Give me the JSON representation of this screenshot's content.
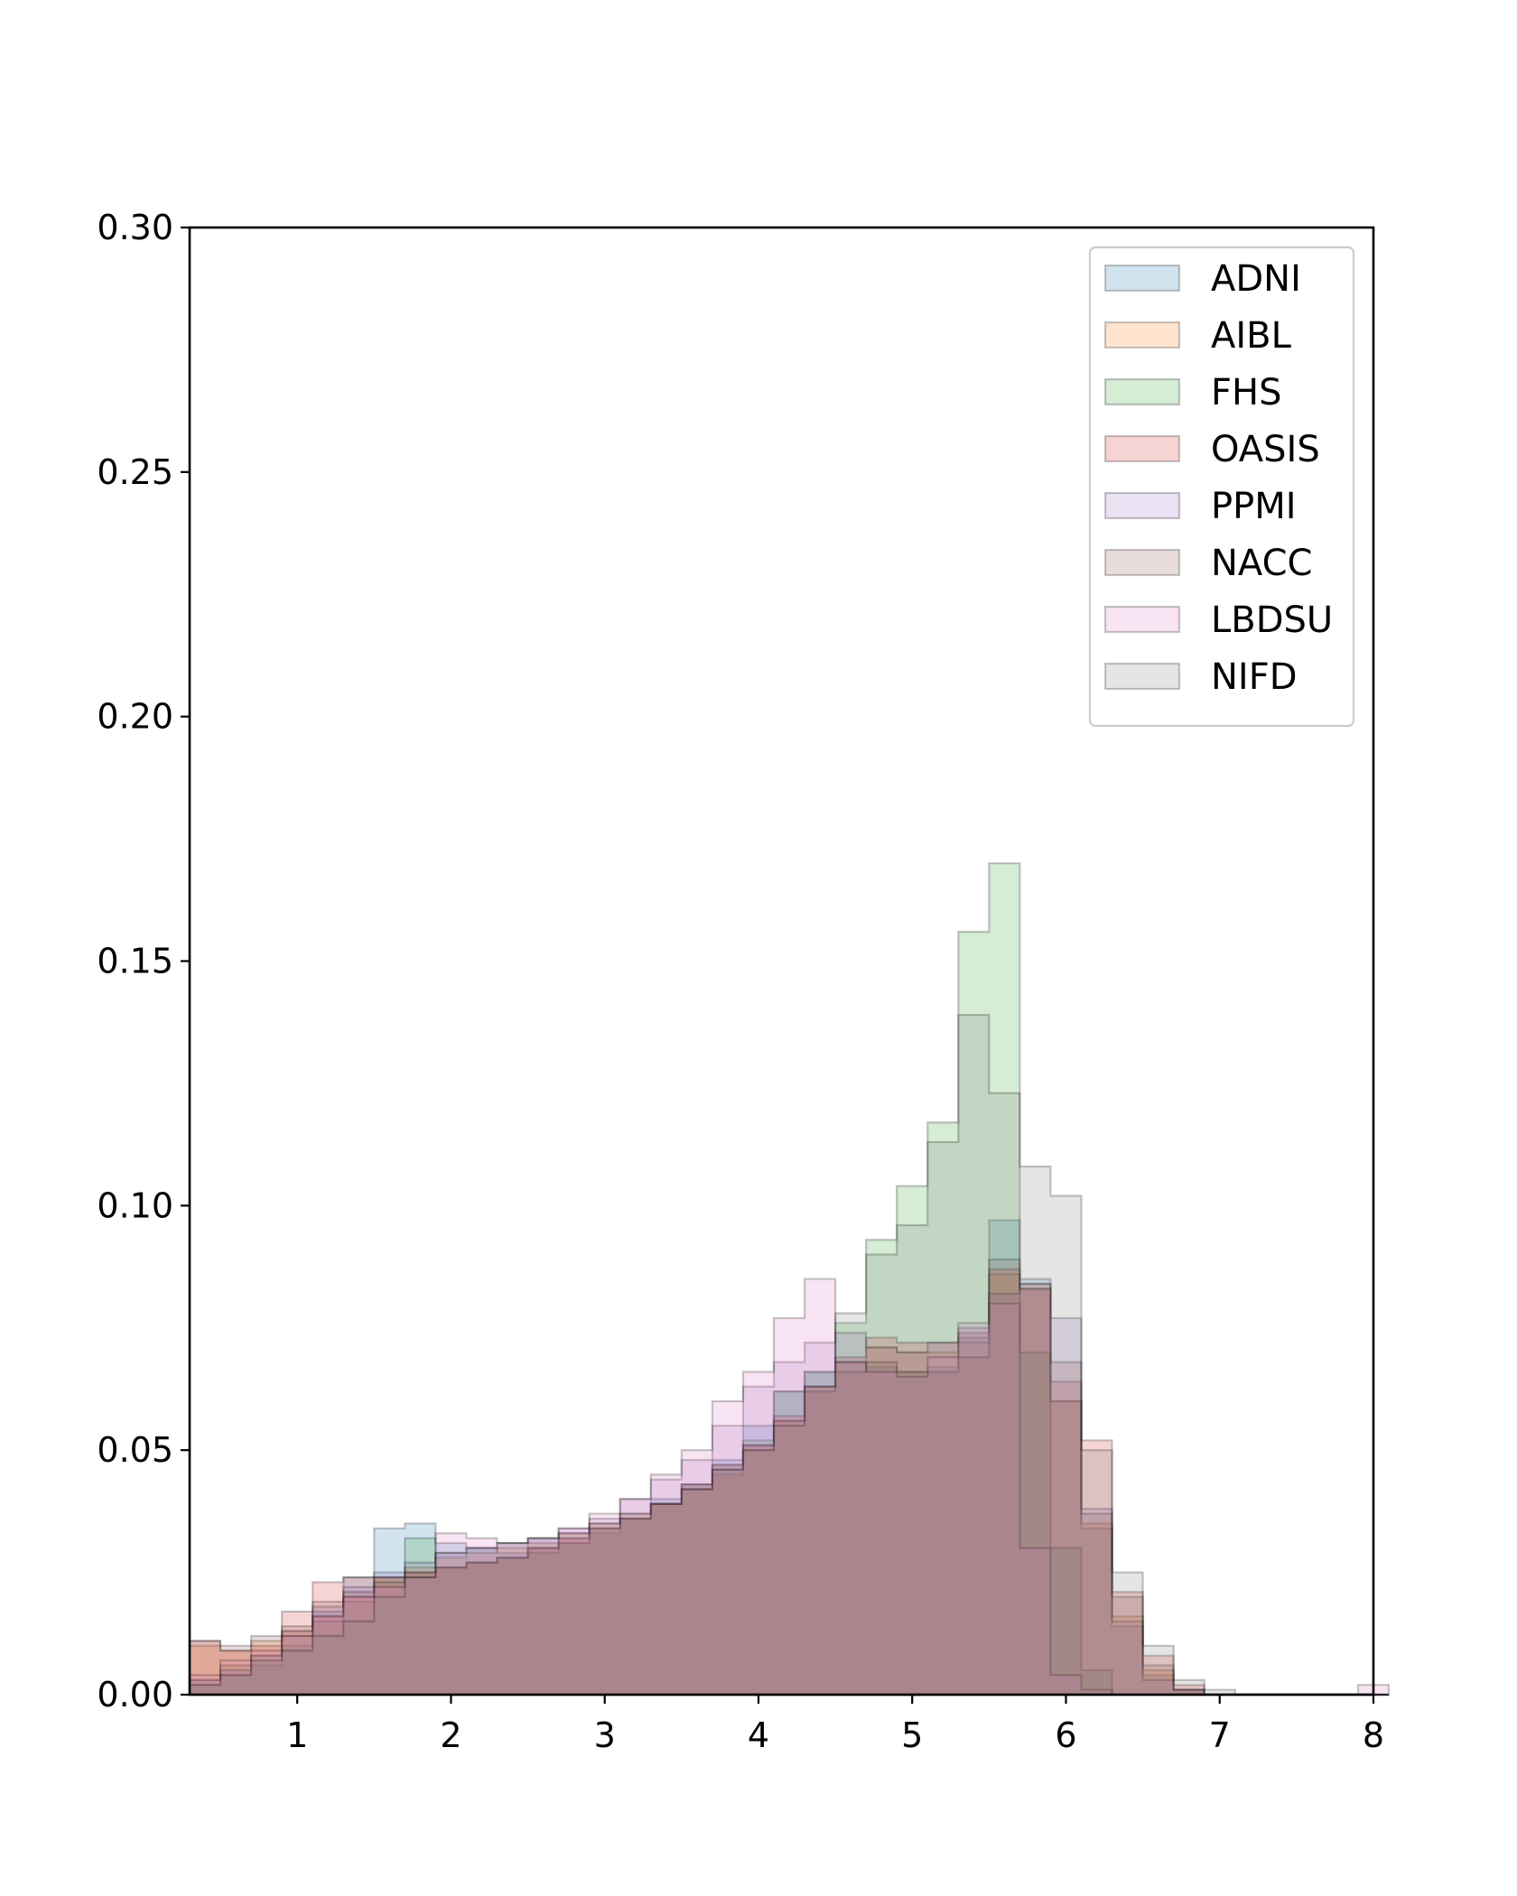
{
  "chart_data": {
    "type": "histogram",
    "title": "",
    "xlabel": "",
    "ylabel": "",
    "xlim": [
      0.3,
      8
    ],
    "ylim": [
      0,
      0.3
    ],
    "grid": false,
    "legend_position": "top-right",
    "x_ticks": [
      {
        "value": 1,
        "label": "1"
      },
      {
        "value": 2,
        "label": "2"
      },
      {
        "value": 3,
        "label": "3"
      },
      {
        "value": 4,
        "label": "4"
      },
      {
        "value": 5,
        "label": "5"
      },
      {
        "value": 6,
        "label": "6"
      },
      {
        "value": 7,
        "label": "7"
      },
      {
        "value": 8,
        "label": "8"
      }
    ],
    "y_ticks": [
      {
        "value": 0.0,
        "label": "0.00"
      },
      {
        "value": 0.05,
        "label": "0.05"
      },
      {
        "value": 0.1,
        "label": "0.10"
      },
      {
        "value": 0.15,
        "label": "0.15"
      },
      {
        "value": 0.2,
        "label": "0.20"
      },
      {
        "value": 0.25,
        "label": "0.25"
      },
      {
        "value": 0.3,
        "label": "0.30"
      }
    ],
    "bin_start": 0.3,
    "bin_width": 0.2,
    "series": [
      {
        "name": "ADNI",
        "color": "#1f77b4",
        "values": [
          0.002,
          0.004,
          0.006,
          0.01,
          0.017,
          0.024,
          0.034,
          0.035,
          0.031,
          0.03,
          0.029,
          0.03,
          0.031,
          0.033,
          0.036,
          0.04,
          0.043,
          0.048,
          0.055,
          0.062,
          0.066,
          0.068,
          0.067,
          0.066,
          0.067,
          0.073,
          0.097,
          0.085,
          0.06,
          0.034,
          0.014,
          0.004,
          0.001,
          0,
          0,
          0,
          0,
          0,
          0
        ]
      },
      {
        "name": "AIBL",
        "color": "#ff7f0e",
        "values": [
          0.01,
          0.009,
          0.011,
          0.013,
          0.016,
          0.02,
          0.024,
          0.026,
          0.028,
          0.029,
          0.03,
          0.031,
          0.033,
          0.035,
          0.037,
          0.039,
          0.042,
          0.045,
          0.05,
          0.056,
          0.063,
          0.068,
          0.071,
          0.07,
          0.07,
          0.072,
          0.086,
          0.084,
          0.06,
          0.035,
          0.016,
          0.005,
          0.001,
          0,
          0,
          0,
          0,
          0,
          0
        ]
      },
      {
        "name": "FHS",
        "color": "#2ca02c",
        "values": [
          0.003,
          0.006,
          0.008,
          0.012,
          0.015,
          0.019,
          0.024,
          0.032,
          0.026,
          0.027,
          0.028,
          0.029,
          0.031,
          0.034,
          0.036,
          0.039,
          0.043,
          0.047,
          0.052,
          0.062,
          0.066,
          0.076,
          0.093,
          0.104,
          0.117,
          0.156,
          0.17,
          0.07,
          0.03,
          0.005,
          0,
          0,
          0,
          0,
          0,
          0,
          0,
          0,
          0
        ]
      },
      {
        "name": "OASIS",
        "color": "#d62728",
        "values": [
          0.011,
          0.009,
          0.01,
          0.017,
          0.023,
          0.024,
          0.024,
          0.025,
          0.026,
          0.027,
          0.028,
          0.03,
          0.032,
          0.034,
          0.036,
          0.039,
          0.043,
          0.047,
          0.051,
          0.057,
          0.063,
          0.069,
          0.073,
          0.072,
          0.072,
          0.074,
          0.087,
          0.083,
          0.064,
          0.052,
          0.021,
          0.008,
          0.002,
          0,
          0,
          0,
          0,
          0,
          0
        ]
      },
      {
        "name": "PPMI",
        "color": "#9467bd",
        "values": [
          0.003,
          0.005,
          0.008,
          0.013,
          0.018,
          0.022,
          0.025,
          0.027,
          0.029,
          0.03,
          0.031,
          0.032,
          0.034,
          0.036,
          0.04,
          0.044,
          0.048,
          0.055,
          0.063,
          0.068,
          0.072,
          0.074,
          0.071,
          0.07,
          0.072,
          0.075,
          0.082,
          0.084,
          0.077,
          0.038,
          0.015,
          0.003,
          0.001,
          0,
          0,
          0,
          0,
          0,
          0
        ]
      },
      {
        "name": "NACC",
        "color": "#8c564b",
        "values": [
          0.011,
          0.01,
          0.012,
          0.014,
          0.019,
          0.021,
          0.023,
          0.025,
          0.026,
          0.027,
          0.028,
          0.03,
          0.032,
          0.034,
          0.036,
          0.039,
          0.042,
          0.046,
          0.051,
          0.056,
          0.062,
          0.066,
          0.068,
          0.066,
          0.066,
          0.069,
          0.089,
          0.083,
          0.068,
          0.037,
          0.02,
          0.006,
          0.001,
          0,
          0,
          0,
          0,
          0,
          0
        ]
      },
      {
        "name": "LBDSU",
        "color": "#e377c2",
        "values": [
          0.004,
          0.007,
          0.009,
          0.012,
          0.016,
          0.02,
          0.022,
          0.024,
          0.033,
          0.032,
          0.031,
          0.032,
          0.034,
          0.037,
          0.04,
          0.045,
          0.05,
          0.06,
          0.066,
          0.077,
          0.085,
          0.068,
          0.066,
          0.065,
          0.069,
          0.076,
          0.08,
          0.03,
          0.004,
          0.001,
          0,
          0,
          0,
          0,
          0,
          0,
          0,
          0,
          0.002
        ]
      },
      {
        "name": "NIFD",
        "color": "#7f7f7f",
        "values": [
          0.002,
          0.004,
          0.007,
          0.009,
          0.012,
          0.015,
          0.02,
          0.024,
          0.029,
          0.03,
          0.031,
          0.032,
          0.033,
          0.035,
          0.037,
          0.039,
          0.042,
          0.046,
          0.05,
          0.055,
          0.063,
          0.078,
          0.09,
          0.096,
          0.113,
          0.139,
          0.123,
          0.108,
          0.102,
          0.05,
          0.025,
          0.01,
          0.003,
          0.001,
          0,
          0,
          0,
          0,
          0
        ]
      }
    ]
  }
}
